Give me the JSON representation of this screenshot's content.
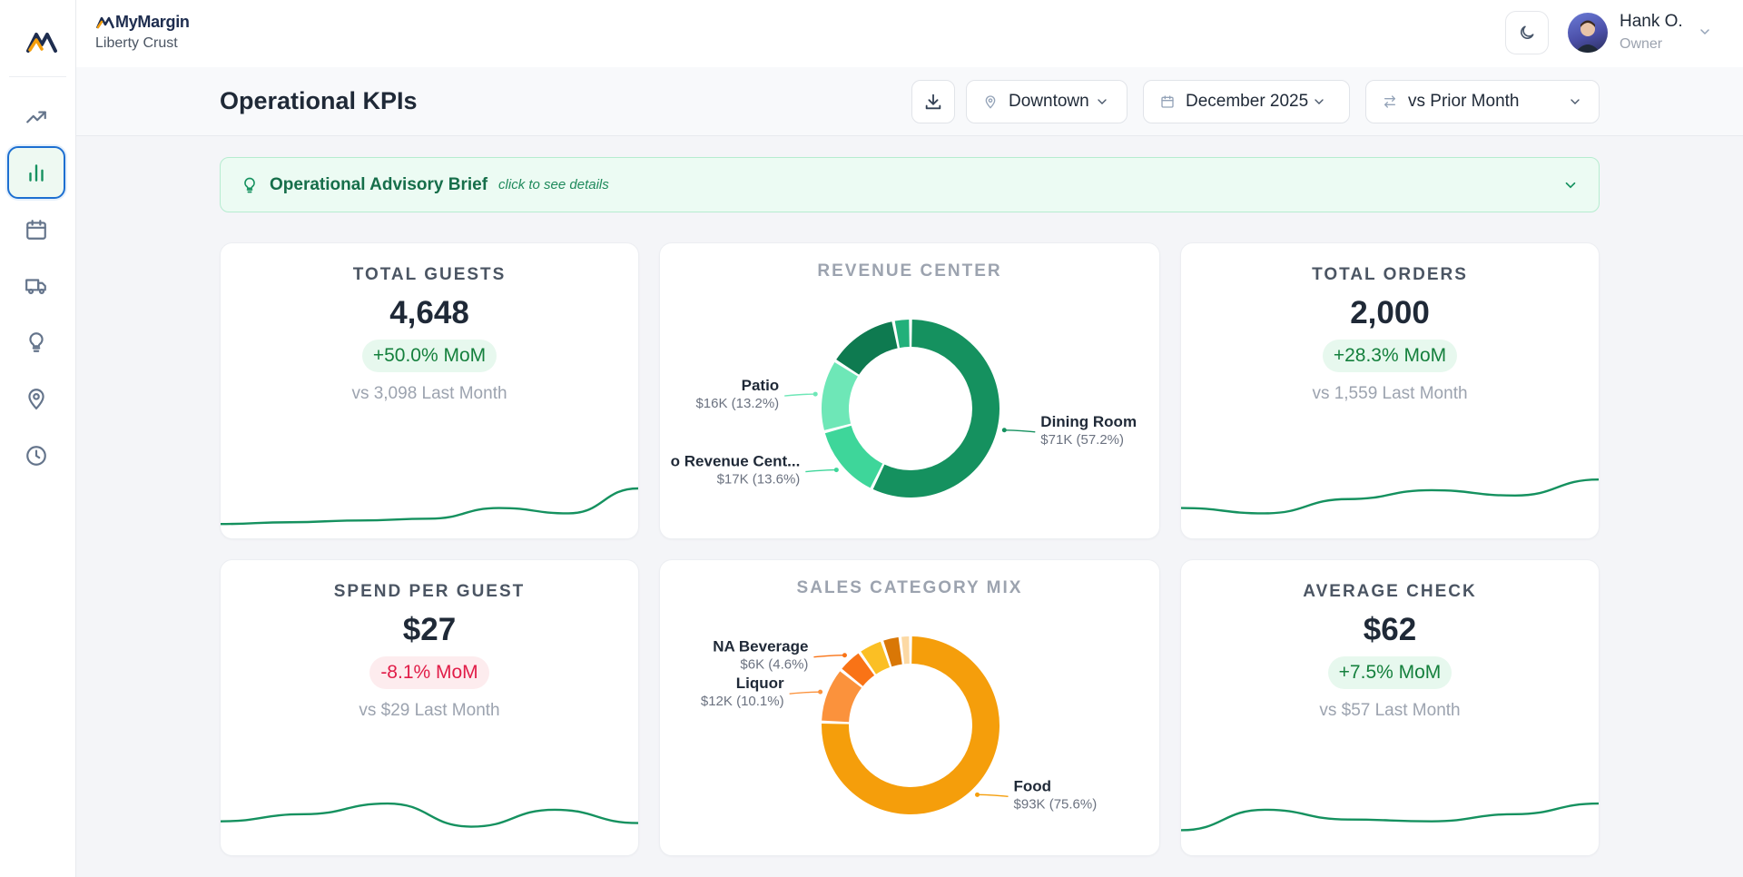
{
  "app": {
    "brand": "MyMargin",
    "org": "Liberty Crust"
  },
  "user": {
    "name": "Hank O.",
    "role": "Owner"
  },
  "page": {
    "title": "Operational KPIs"
  },
  "controls": {
    "location": "Downtown",
    "period": "December 2025",
    "compare": "vs Prior Month"
  },
  "advisory": {
    "title": "Operational Advisory Brief",
    "hint": "click to see details"
  },
  "sidebar": {
    "items": [
      {
        "icon": "trending-up-icon",
        "active": false
      },
      {
        "icon": "bar-chart-icon",
        "active": true
      },
      {
        "icon": "calendar-icon",
        "active": false
      },
      {
        "icon": "truck-icon",
        "active": false
      },
      {
        "icon": "lightbulb-icon",
        "active": false
      },
      {
        "icon": "map-pin-icon",
        "active": false
      },
      {
        "icon": "clock-icon",
        "active": false
      }
    ]
  },
  "colors": {
    "accent_green": "#15915f",
    "positive": "#15803d",
    "negative": "#e11d48",
    "active_border": "#1d6fd1"
  },
  "kpis": {
    "total_guests": {
      "title": "TOTAL GUESTS",
      "value": "4,648",
      "change": "+50.0% MoM",
      "direction": "up",
      "compare": "vs 3,098 Last Month"
    },
    "total_orders": {
      "title": "TOTAL ORDERS",
      "value": "2,000",
      "change": "+28.3% MoM",
      "direction": "up",
      "compare": "vs 1,559 Last Month"
    },
    "spend_per_guest": {
      "title": "SPEND PER GUEST",
      "value": "$27",
      "change": "-8.1% MoM",
      "direction": "down",
      "compare": "vs $29 Last Month"
    },
    "average_check": {
      "title": "AVERAGE CHECK",
      "value": "$62",
      "change": "+7.5% MoM",
      "direction": "up",
      "compare": "vs $57 Last Month"
    }
  },
  "chart_data": [
    {
      "type": "pie",
      "title": "REVENUE CENTER",
      "slices": [
        {
          "name": "Dining Room",
          "value_label": "$71K (57.2%)",
          "percent": 57.2,
          "color": "#15915f",
          "labeled": true
        },
        {
          "name": "o Revenue Cent...",
          "value_label": "$17K (13.6%)",
          "percent": 13.6,
          "color": "#3ed69a",
          "labeled": true
        },
        {
          "name": "Patio",
          "value_label": "$16K (13.2%)",
          "percent": 13.2,
          "color": "#6ee7b7",
          "labeled": true
        },
        {
          "name": "",
          "value_label": "",
          "percent": 12.9,
          "color": "#0e7a50",
          "labeled": false
        },
        {
          "name": "",
          "value_label": "",
          "percent": 3.1,
          "color": "#22b07a",
          "labeled": false
        }
      ]
    },
    {
      "type": "pie",
      "title": "SALES CATEGORY MIX",
      "slices": [
        {
          "name": "Food",
          "value_label": "$93K (75.6%)",
          "percent": 75.6,
          "color": "#f59e0b",
          "labeled": true
        },
        {
          "name": "Liquor",
          "value_label": "$12K (10.1%)",
          "percent": 10.1,
          "color": "#fb923c",
          "labeled": true
        },
        {
          "name": "NA Beverage",
          "value_label": "$6K (4.6%)",
          "percent": 4.6,
          "color": "#f97316",
          "labeled": true
        },
        {
          "name": "",
          "value_label": "",
          "percent": 4.5,
          "color": "#fbbf24",
          "labeled": false
        },
        {
          "name": "",
          "value_label": "",
          "percent": 3.3,
          "color": "#d97706",
          "labeled": false
        },
        {
          "name": "",
          "value_label": "",
          "percent": 1.9,
          "color": "#fcd9a4",
          "labeled": false
        }
      ]
    },
    {
      "type": "line",
      "series": [
        {
          "values": [
            0.1,
            0.12,
            0.14,
            0.16,
            0.28,
            0.22,
            0.5
          ]
        }
      ]
    },
    {
      "type": "line",
      "series": [
        {
          "values": [
            0.28,
            0.22,
            0.38,
            0.48,
            0.42,
            0.6
          ]
        }
      ]
    },
    {
      "type": "line",
      "series": [
        {
          "values": [
            0.32,
            0.4,
            0.52,
            0.26,
            0.45,
            0.3
          ]
        }
      ]
    },
    {
      "type": "line",
      "series": [
        {
          "values": [
            0.22,
            0.45,
            0.34,
            0.32,
            0.4,
            0.52
          ]
        }
      ]
    }
  ]
}
